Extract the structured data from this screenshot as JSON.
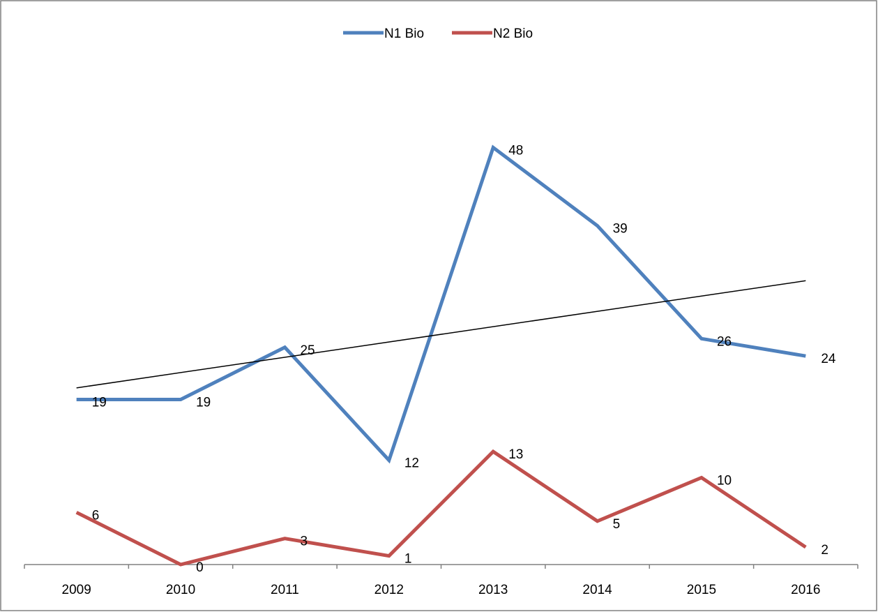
{
  "chart_data": {
    "type": "line",
    "categories": [
      "2009",
      "2010",
      "2011",
      "2012",
      "2013",
      "2014",
      "2015",
      "2016"
    ],
    "series": [
      {
        "name": "N1 Bio",
        "values": [
          19,
          19,
          25,
          12,
          48,
          39,
          26,
          24
        ],
        "color": "#4f81bd"
      },
      {
        "name": "N2 Bio",
        "values": [
          6,
          0,
          3,
          1,
          13,
          5,
          10,
          2
        ],
        "color": "#c0504d"
      }
    ],
    "trendline": {
      "series": "N1 Bio",
      "type": "linear",
      "color": "#000000"
    },
    "ylim": [
      0,
      60
    ],
    "legend": "top-center",
    "grid": false,
    "frame_color": "#808080"
  }
}
